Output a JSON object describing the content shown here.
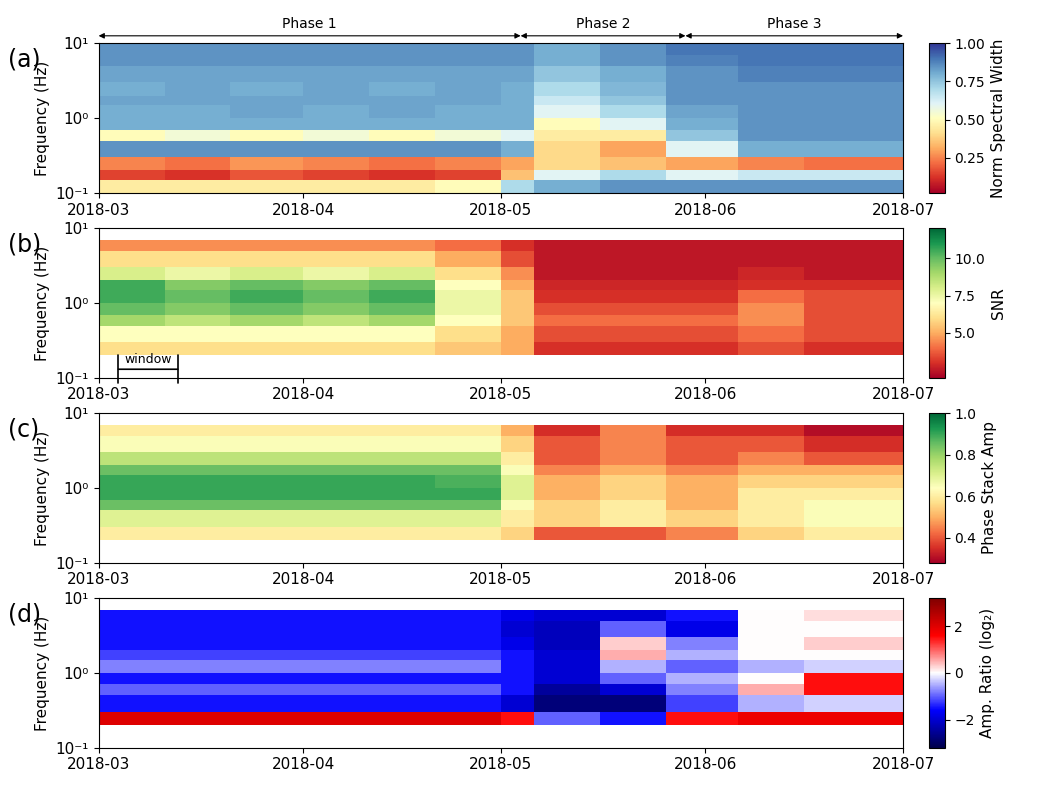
{
  "chart_data": [
    {
      "type": "heatmap",
      "panel_label": "(a)",
      "ylabel": "Frequency (Hz)",
      "log": "y",
      "xlim": [
        "2018-03-01",
        "2018-07-01"
      ],
      "xticks": [
        {
          "value": "2018-03-01",
          "label": "2018-03"
        },
        {
          "value": "2018-04-01",
          "label": "2018-04"
        },
        {
          "value": "2018-05-01",
          "label": "2018-05"
        },
        {
          "value": "2018-06-01",
          "label": "2018-06"
        },
        {
          "value": "2018-07-01",
          "label": "2018-07"
        }
      ],
      "ylim": [
        0.1,
        10
      ],
      "yticks": [
        {
          "value": 0.1,
          "label": "10⁻¹"
        },
        {
          "value": 1,
          "label": "10⁰"
        },
        {
          "value": 10,
          "label": "10¹"
        }
      ],
      "annotations": [
        {
          "text": "Phase 1",
          "start": "2018-03-01",
          "end": "2018-05-04"
        },
        {
          "text": "Phase 2",
          "start": "2018-05-04",
          "end": "2018-05-29"
        },
        {
          "text": "Phase 3",
          "start": "2018-05-29",
          "end": "2018-07-01"
        }
      ],
      "x_edges": [
        "2018-03-01",
        "2018-03-11",
        "2018-03-21",
        "2018-04-01",
        "2018-04-11",
        "2018-04-21",
        "2018-05-01",
        "2018-05-06",
        "2018-05-16",
        "2018-05-26",
        "2018-06-06",
        "2018-06-16",
        "2018-07-01"
      ],
      "y_edges": [
        0.1,
        0.15,
        0.2,
        0.3,
        0.5,
        0.7,
        1,
        1.5,
        2,
        3,
        5,
        7,
        10
      ],
      "cells": [
        [
          0.45,
          0.45,
          0.45,
          0.45,
          0.45,
          0.5,
          0.7,
          0.8,
          0.85,
          0.85,
          0.85,
          0.85
        ],
        [
          0.15,
          0.12,
          0.18,
          0.15,
          0.12,
          0.15,
          0.35,
          0.6,
          0.7,
          0.6,
          0.65,
          0.65
        ],
        [
          0.25,
          0.22,
          0.28,
          0.25,
          0.22,
          0.25,
          0.3,
          0.4,
          0.35,
          0.3,
          0.25,
          0.22
        ],
        [
          0.85,
          0.85,
          0.85,
          0.85,
          0.85,
          0.85,
          0.8,
          0.4,
          0.3,
          0.6,
          0.8,
          0.8
        ],
        [
          0.5,
          0.55,
          0.5,
          0.55,
          0.5,
          0.55,
          0.6,
          0.45,
          0.45,
          0.75,
          0.85,
          0.85
        ],
        [
          0.8,
          0.8,
          0.8,
          0.8,
          0.8,
          0.8,
          0.8,
          0.5,
          0.6,
          0.8,
          0.85,
          0.85
        ],
        [
          0.8,
          0.8,
          0.82,
          0.8,
          0.82,
          0.8,
          0.8,
          0.6,
          0.7,
          0.82,
          0.85,
          0.85
        ],
        [
          0.82,
          0.82,
          0.82,
          0.82,
          0.82,
          0.82,
          0.8,
          0.65,
          0.75,
          0.85,
          0.85,
          0.85
        ],
        [
          0.8,
          0.82,
          0.8,
          0.82,
          0.8,
          0.82,
          0.8,
          0.7,
          0.78,
          0.85,
          0.85,
          0.85
        ],
        [
          0.82,
          0.82,
          0.82,
          0.82,
          0.82,
          0.82,
          0.82,
          0.75,
          0.8,
          0.85,
          0.88,
          0.88
        ],
        [
          0.85,
          0.85,
          0.85,
          0.85,
          0.85,
          0.85,
          0.85,
          0.8,
          0.85,
          0.88,
          0.9,
          0.9
        ],
        [
          0.85,
          0.85,
          0.85,
          0.85,
          0.85,
          0.85,
          0.85,
          0.8,
          0.85,
          0.9,
          0.9,
          0.9
        ]
      ],
      "colorbar": {
        "label": "Norm Spectral Width",
        "lim": [
          0.02,
          1.0
        ],
        "ticks": [
          {
            "value": 0.25,
            "label": "0.25"
          },
          {
            "value": 0.5,
            "label": "0.50"
          },
          {
            "value": 0.75,
            "label": "0.75"
          },
          {
            "value": 1.0,
            "label": "1.00"
          }
        ]
      }
    },
    {
      "type": "heatmap",
      "panel_label": "(b)",
      "ylabel": "Frequency (Hz)",
      "log": "y",
      "xlim": [
        "2018-03-01",
        "2018-07-01"
      ],
      "xticks": [
        {
          "value": "2018-03-01",
          "label": "2018-03"
        },
        {
          "value": "2018-04-01",
          "label": "2018-04"
        },
        {
          "value": "2018-05-01",
          "label": "2018-05"
        },
        {
          "value": "2018-06-01",
          "label": "2018-06"
        },
        {
          "value": "2018-07-01",
          "label": "2018-07"
        }
      ],
      "ylim": [
        0.1,
        10
      ],
      "yticks": [
        {
          "value": 0.1,
          "label": "10⁻¹"
        },
        {
          "value": 1,
          "label": "10⁰"
        },
        {
          "value": 10,
          "label": "10¹"
        }
      ],
      "annotations": [
        {
          "text": "window",
          "start": "2018-03-04",
          "end": "2018-03-13",
          "y": 0.13
        }
      ],
      "x_edges": [
        "2018-03-01",
        "2018-03-11",
        "2018-03-21",
        "2018-04-01",
        "2018-04-11",
        "2018-04-21",
        "2018-05-01",
        "2018-05-06",
        "2018-05-16",
        "2018-05-26",
        "2018-06-06",
        "2018-06-16",
        "2018-07-01"
      ],
      "y_edges": [
        0.1,
        0.15,
        0.2,
        0.3,
        0.5,
        0.7,
        1,
        1.5,
        2,
        3,
        5,
        7,
        10
      ],
      "cells": [
        [
          null,
          null,
          null,
          null,
          null,
          null,
          null,
          null,
          null,
          null,
          null,
          null
        ],
        [
          null,
          null,
          null,
          null,
          null,
          null,
          null,
          null,
          null,
          null,
          null,
          null
        ],
        [
          6,
          6,
          6,
          6,
          6,
          5.5,
          5,
          3,
          3,
          3,
          3.5,
          3
        ],
        [
          7,
          7,
          7,
          7,
          7,
          6,
          5,
          3.5,
          3.5,
          3.5,
          4,
          3.5
        ],
        [
          9,
          8.5,
          9,
          8.5,
          9,
          7,
          5.5,
          4,
          4,
          4,
          4.5,
          3.5
        ],
        [
          10,
          9.5,
          10,
          9.5,
          10,
          7.5,
          5.5,
          3.5,
          3.5,
          3.5,
          4.5,
          3.5
        ],
        [
          10.5,
          10,
          10.5,
          10,
          10.5,
          7.5,
          5.5,
          3,
          3,
          3,
          4,
          3.5
        ],
        [
          10.5,
          9.5,
          10,
          9.5,
          10,
          7,
          5,
          2.8,
          2.8,
          2.8,
          3,
          3
        ],
        [
          8,
          7.5,
          8,
          7.5,
          8,
          6,
          4.5,
          2.5,
          2.5,
          2.5,
          2.8,
          2.5
        ],
        [
          6,
          6,
          6,
          6,
          6,
          5,
          3.5,
          2.5,
          2.5,
          2.5,
          2.5,
          2.5
        ],
        [
          4.5,
          4.5,
          4.5,
          4.5,
          4.5,
          4,
          3,
          2.5,
          2.5,
          2.5,
          2.5,
          2.5
        ],
        [
          null,
          null,
          null,
          null,
          null,
          null,
          null,
          null,
          null,
          null,
          null,
          null
        ]
      ],
      "colorbar": {
        "label": "SNR",
        "lim": [
          2,
          12
        ],
        "ticks": [
          {
            "value": 5,
            "label": "5.0"
          },
          {
            "value": 7.5,
            "label": "7.5"
          },
          {
            "value": 10,
            "label": "10.0"
          }
        ]
      }
    },
    {
      "type": "heatmap",
      "panel_label": "(c)",
      "ylabel": "Frequency (Hz)",
      "log": "y",
      "xlim": [
        "2018-03-01",
        "2018-07-01"
      ],
      "xticks": [
        {
          "value": "2018-03-01",
          "label": "2018-03"
        },
        {
          "value": "2018-04-01",
          "label": "2018-04"
        },
        {
          "value": "2018-05-01",
          "label": "2018-05"
        },
        {
          "value": "2018-06-01",
          "label": "2018-06"
        },
        {
          "value": "2018-07-01",
          "label": "2018-07"
        }
      ],
      "ylim": [
        0.1,
        10
      ],
      "yticks": [
        {
          "value": 0.1,
          "label": "10⁻¹"
        },
        {
          "value": 1,
          "label": "10⁰"
        },
        {
          "value": 10,
          "label": "10¹"
        }
      ],
      "x_edges": [
        "2018-03-01",
        "2018-03-11",
        "2018-03-21",
        "2018-04-01",
        "2018-04-11",
        "2018-04-21",
        "2018-05-01",
        "2018-05-06",
        "2018-05-16",
        "2018-05-26",
        "2018-06-06",
        "2018-06-16",
        "2018-07-01"
      ],
      "y_edges": [
        0.1,
        0.15,
        0.2,
        0.3,
        0.5,
        0.7,
        1,
        1.5,
        2,
        3,
        5,
        7,
        10
      ],
      "cells": [
        [
          null,
          null,
          null,
          null,
          null,
          null,
          null,
          null,
          null,
          null,
          null,
          null
        ],
        [
          null,
          null,
          null,
          null,
          null,
          null,
          null,
          null,
          null,
          null,
          null,
          null
        ],
        [
          0.6,
          0.6,
          0.6,
          0.6,
          0.6,
          0.6,
          0.55,
          0.4,
          0.4,
          0.45,
          0.55,
          0.6
        ],
        [
          0.7,
          0.7,
          0.7,
          0.7,
          0.7,
          0.7,
          0.6,
          0.55,
          0.6,
          0.55,
          0.6,
          0.65
        ],
        [
          0.85,
          0.85,
          0.85,
          0.85,
          0.85,
          0.85,
          0.65,
          0.55,
          0.6,
          0.5,
          0.6,
          0.65
        ],
        [
          0.9,
          0.9,
          0.9,
          0.9,
          0.9,
          0.9,
          0.7,
          0.5,
          0.55,
          0.5,
          0.6,
          0.6
        ],
        [
          0.9,
          0.9,
          0.9,
          0.9,
          0.9,
          0.88,
          0.7,
          0.5,
          0.55,
          0.5,
          0.55,
          0.55
        ],
        [
          0.85,
          0.85,
          0.85,
          0.85,
          0.85,
          0.85,
          0.65,
          0.45,
          0.5,
          0.45,
          0.5,
          0.5
        ],
        [
          0.75,
          0.75,
          0.75,
          0.75,
          0.75,
          0.75,
          0.6,
          0.4,
          0.45,
          0.4,
          0.45,
          0.4
        ],
        [
          0.65,
          0.65,
          0.65,
          0.65,
          0.65,
          0.65,
          0.55,
          0.4,
          0.45,
          0.4,
          0.4,
          0.35
        ],
        [
          0.6,
          0.6,
          0.6,
          0.6,
          0.6,
          0.6,
          0.5,
          0.35,
          0.45,
          0.35,
          0.35,
          0.3
        ],
        [
          null,
          null,
          null,
          null,
          null,
          null,
          null,
          null,
          null,
          null,
          null,
          null
        ]
      ],
      "colorbar": {
        "label": "Phase Stack Amp",
        "lim": [
          0.28,
          1.0
        ],
        "ticks": [
          0.4,
          0.6,
          0.8,
          {
            "value": 1.0,
            "label": "1.0"
          }
        ]
      }
    },
    {
      "type": "heatmap",
      "panel_label": "(d)",
      "ylabel": "Frequency (Hz)",
      "log": "y",
      "xlim": [
        "2018-03-01",
        "2018-07-01"
      ],
      "xticks": [
        {
          "value": "2018-03-01",
          "label": "2018-03"
        },
        {
          "value": "2018-04-01",
          "label": "2018-04"
        },
        {
          "value": "2018-05-01",
          "label": "2018-05"
        },
        {
          "value": "2018-06-01",
          "label": "2018-06"
        },
        {
          "value": "2018-07-01",
          "label": "2018-07"
        }
      ],
      "ylim": [
        0.1,
        10
      ],
      "yticks": [
        {
          "value": 0.1,
          "label": "10⁻¹"
        },
        {
          "value": 1,
          "label": "10⁰"
        },
        {
          "value": 10,
          "label": "10¹"
        }
      ],
      "x_edges": [
        "2018-03-01",
        "2018-03-11",
        "2018-03-21",
        "2018-04-01",
        "2018-04-11",
        "2018-04-21",
        "2018-05-01",
        "2018-05-06",
        "2018-05-16",
        "2018-05-26",
        "2018-06-06",
        "2018-06-16",
        "2018-07-01"
      ],
      "y_edges": [
        0.1,
        0.15,
        0.2,
        0.3,
        0.5,
        0.7,
        1,
        1.5,
        2,
        3,
        5,
        7,
        10
      ],
      "cells": [
        [
          null,
          null,
          null,
          null,
          null,
          null,
          null,
          null,
          null,
          null,
          null,
          null
        ],
        [
          null,
          null,
          null,
          null,
          null,
          null,
          null,
          null,
          null,
          null,
          null,
          null
        ],
        [
          2,
          2,
          2,
          2,
          2,
          2,
          1.5,
          -1,
          -1.5,
          1.5,
          1.8,
          1.8
        ],
        [
          -1.5,
          -1.5,
          -1.5,
          -1.5,
          -1.5,
          -1.5,
          -2,
          -2.8,
          -2.8,
          -1.2,
          -0.5,
          -0.3
        ],
        [
          -1,
          -1,
          -1,
          -1,
          -1,
          -1,
          -1.5,
          -2.5,
          -2,
          -0.8,
          0.5,
          1.5
        ],
        [
          -1.5,
          -1.5,
          -1.5,
          -1.5,
          -1.5,
          -1.5,
          -1.5,
          -2,
          -1,
          -0.5,
          0,
          1.5
        ],
        [
          -0.8,
          -0.8,
          -0.8,
          -0.8,
          -0.8,
          -0.8,
          -1.5,
          -2,
          -0.5,
          -1,
          -0.5,
          -0.3
        ],
        [
          -1.2,
          -1.2,
          -1.2,
          -1.2,
          -1.2,
          -1.2,
          -1.5,
          -2,
          0.5,
          -0.5,
          0,
          0
        ],
        [
          -1.5,
          -1.5,
          -1.5,
          -1.5,
          -1.5,
          -1.5,
          -1.8,
          -2.2,
          0.3,
          -0.8,
          0,
          0.3
        ],
        [
          -1.5,
          -1.5,
          -1.5,
          -1.5,
          -1.5,
          -1.5,
          -2,
          -2.2,
          -1,
          -1.8,
          0,
          0
        ],
        [
          -1.5,
          -1.5,
          -1.5,
          -1.5,
          -1.5,
          -1.5,
          -1.8,
          -2,
          -2,
          -1.5,
          0,
          0.2
        ],
        [
          null,
          null,
          null,
          null,
          null,
          null,
          null,
          null,
          null,
          null,
          null,
          null
        ]
      ],
      "colorbar": {
        "label": "Amp. Ratio (log₂)",
        "lim": [
          -3.2,
          3.2
        ],
        "ticks": [
          {
            "value": -2,
            "label": "−2"
          },
          0,
          2
        ]
      }
    }
  ]
}
